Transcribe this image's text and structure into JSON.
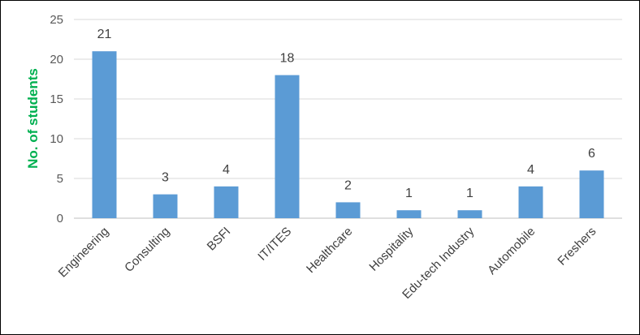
{
  "chart_data": {
    "type": "bar",
    "categories": [
      "Engineering",
      "Consulting",
      "BSFI",
      "IT/ITES",
      "Healthcare",
      "Hospitality",
      "Edu-tech Industry",
      "Automobile",
      "Freshers"
    ],
    "values": [
      21,
      3,
      4,
      18,
      2,
      1,
      1,
      4,
      6
    ],
    "data_labels": [
      "21",
      "3",
      "4",
      "18",
      "2",
      "1",
      "1",
      "4",
      "6"
    ],
    "ylabel": "No. of students",
    "ylim": [
      0,
      25
    ],
    "yticks": [
      0,
      5,
      10,
      15,
      20,
      25
    ],
    "ytick_labels": [
      "0",
      "5",
      "10",
      "15",
      "20",
      "25"
    ],
    "grid": true,
    "legend": "none",
    "colors": {
      "bar": "#5b9bd5",
      "grid": "#d9d9d9",
      "ylabel": "#00b050"
    }
  }
}
